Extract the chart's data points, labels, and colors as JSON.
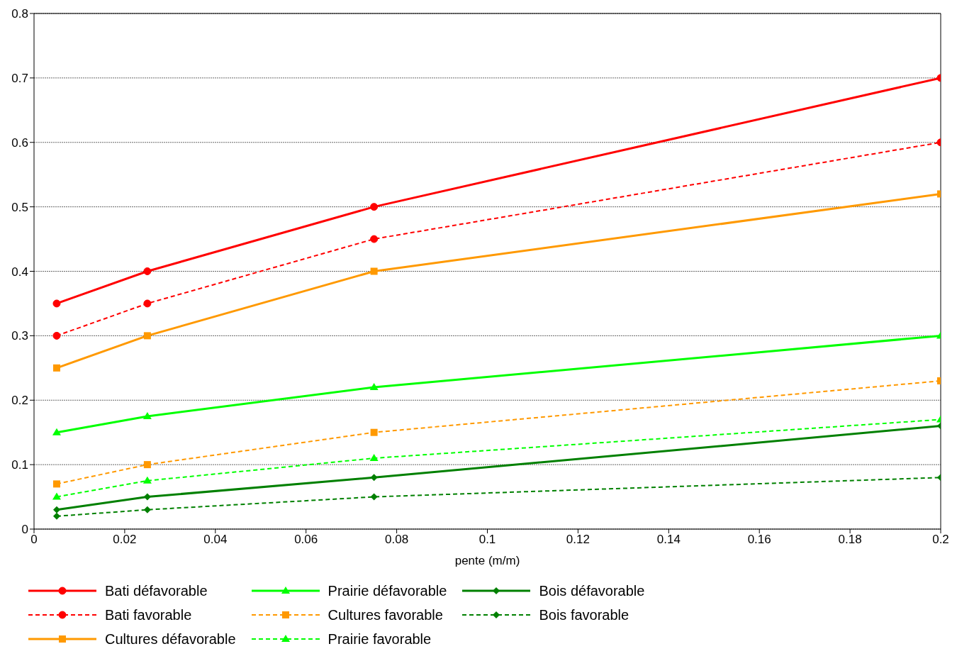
{
  "chart_data": {
    "type": "line",
    "xlabel": "pente (m/m)",
    "xlim": [
      0,
      0.2
    ],
    "xticks": [
      0,
      0.02,
      0.04,
      0.06,
      0.08,
      0.1,
      0.12,
      0.14,
      0.16,
      0.18,
      0.2
    ],
    "ylim": [
      0,
      0.8
    ],
    "yticks": [
      0,
      0.1,
      0.2,
      0.3,
      0.4,
      0.5,
      0.6,
      0.7,
      0.8
    ],
    "grid": "y",
    "legend": "bottom",
    "x": [
      0.005,
      0.025,
      0.075,
      0.2
    ],
    "series": [
      {
        "name": "Bati défavorable",
        "color": "#ff0000",
        "marker": "circle",
        "line_style": "solid",
        "values": [
          0.35,
          0.4,
          0.5,
          0.7
        ]
      },
      {
        "name": "Bati favorable",
        "color": "#ff0000",
        "marker": "circle",
        "line_style": "dashed",
        "values": [
          0.3,
          0.35,
          0.45,
          0.6
        ]
      },
      {
        "name": "Cultures défavorable",
        "color": "#ff9900",
        "marker": "square",
        "line_style": "solid",
        "values": [
          0.25,
          0.3,
          0.4,
          0.52
        ]
      },
      {
        "name": "Prairie défavorable",
        "color": "#00ff00",
        "marker": "triangle",
        "line_style": "solid",
        "values": [
          0.15,
          0.175,
          0.22,
          0.3
        ]
      },
      {
        "name": "Cultures favorable",
        "color": "#ff9900",
        "marker": "square",
        "line_style": "dashed",
        "values": [
          0.07,
          0.1,
          0.15,
          0.23
        ]
      },
      {
        "name": "Prairie favorable",
        "color": "#00ff00",
        "marker": "triangle",
        "line_style": "dashed",
        "values": [
          0.05,
          0.075,
          0.11,
          0.17
        ]
      },
      {
        "name": "Bois défavorable",
        "color": "#008000",
        "marker": "diamond",
        "line_style": "solid",
        "values": [
          0.03,
          0.05,
          0.08,
          0.16
        ]
      },
      {
        "name": "Bois favorable",
        "color": "#008000",
        "marker": "diamond",
        "line_style": "dashed",
        "values": [
          0.02,
          0.03,
          0.05,
          0.08
        ]
      }
    ]
  }
}
